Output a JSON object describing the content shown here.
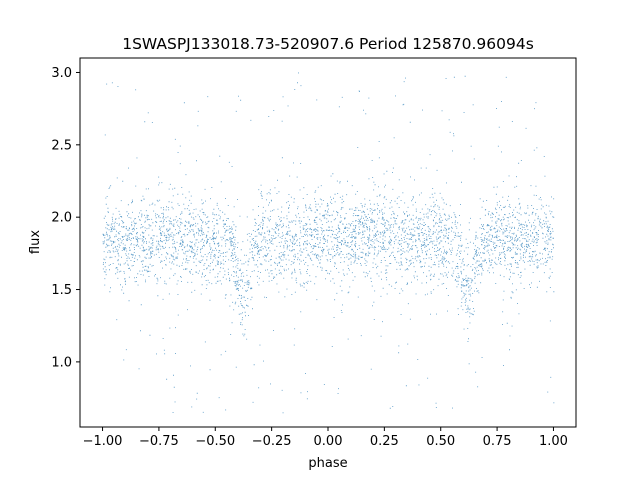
{
  "chart_data": {
    "type": "scatter",
    "title": "1SWASPJ133018.73-520907.6 Period 125870.96094s",
    "xlabel": "phase",
    "ylabel": "flux",
    "xlim": [
      -1.1,
      1.1
    ],
    "ylim": [
      0.55,
      3.1
    ],
    "xticks": [
      -1.0,
      -0.75,
      -0.5,
      -0.25,
      0.0,
      0.25,
      0.5,
      0.75,
      1.0
    ],
    "xtick_labels": [
      "−1.00",
      "−0.75",
      "−0.50",
      "−0.25",
      "0.00",
      "0.25",
      "0.50",
      "0.75",
      "1.00"
    ],
    "yticks": [
      1.0,
      1.5,
      2.0,
      2.5,
      3.0
    ],
    "ytick_labels": [
      "1.0",
      "1.5",
      "2.0",
      "2.5",
      "3.0"
    ],
    "grid": false,
    "series": [
      {
        "color": "#1f77b4",
        "x_range": [
          -1.0,
          1.0
        ],
        "baseline_flux": 1.85,
        "flux_spread": 0.15,
        "eclipses": [
          {
            "phase": -0.38,
            "min_flux": 1.45
          },
          {
            "phase": 0.62,
            "min_flux": 1.45
          }
        ],
        "outlier_range": [
          0.65,
          3.0
        ]
      }
    ]
  }
}
